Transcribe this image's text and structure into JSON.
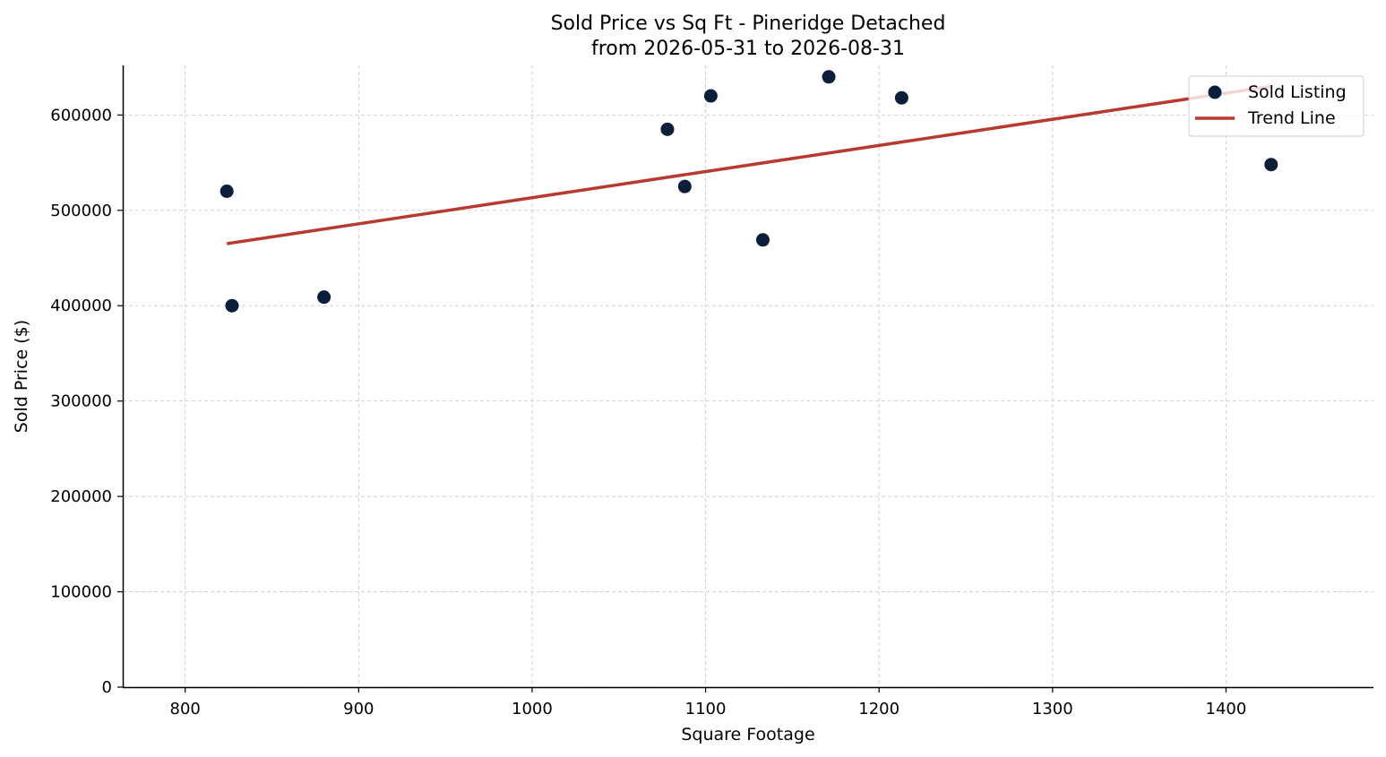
{
  "chart_data": {
    "type": "scatter",
    "title": "Sold Price vs Sq Ft - Pineridge Detached",
    "subtitle": "from 2026-05-31 to 2026-08-31",
    "xlabel": "Square Footage",
    "ylabel": "Sold Price ($)",
    "xlim": [
      764,
      1485
    ],
    "ylim": [
      0,
      652000
    ],
    "x_ticks": [
      800,
      900,
      1000,
      1100,
      1200,
      1300,
      1400
    ],
    "y_ticks": [
      0,
      100000,
      200000,
      300000,
      400000,
      500000,
      600000
    ],
    "grid": true,
    "legend_position": "top-right",
    "series": [
      {
        "name": "Sold Listing",
        "kind": "scatter",
        "color": "#0b1f3a",
        "points": [
          {
            "x": 824,
            "y": 520000
          },
          {
            "x": 827,
            "y": 400000
          },
          {
            "x": 880,
            "y": 409000
          },
          {
            "x": 1078,
            "y": 585000
          },
          {
            "x": 1088,
            "y": 525000
          },
          {
            "x": 1103,
            "y": 620000
          },
          {
            "x": 1133,
            "y": 469000
          },
          {
            "x": 1171,
            "y": 640000
          },
          {
            "x": 1213,
            "y": 618000
          },
          {
            "x": 1426,
            "y": 548000
          }
        ]
      },
      {
        "name": "Trend Line",
        "kind": "line",
        "color": "#b83a2e",
        "points": [
          {
            "x": 824,
            "y": 465000
          },
          {
            "x": 1426,
            "y": 630000
          }
        ]
      }
    ]
  }
}
